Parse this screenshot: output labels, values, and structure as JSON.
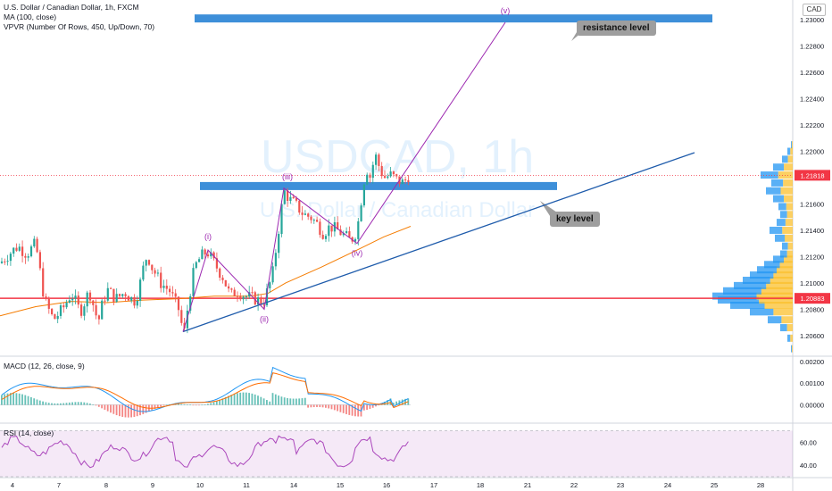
{
  "header": {
    "symbol_line": "U.S. Dollar / Canadian Dollar, 1h, FXCM",
    "ma_line": "MA (100, close)",
    "vpvr_line": "VPVR (Number Of Rows, 450, Up/Down, 70)",
    "currency_badge": "CAD"
  },
  "watermark": {
    "symbol": "USDCAD, 1h",
    "description": "U.S. Dollar / Canadian Dollar"
  },
  "annotations": {
    "resistance": "resistance level",
    "key": "key level"
  },
  "wave_labels": [
    "(i)",
    "(ii)",
    "(iii)",
    "(iv)",
    "(v)"
  ],
  "price_badges": {
    "last": "1.21818",
    "line": "1.20883"
  },
  "macd_title": "MACD (12, 26, close, 9)",
  "rsi_title": "RSI (14, close)",
  "colors": {
    "up": "#26a69a",
    "down": "#ef5350",
    "zone": "#3d8fd9",
    "wave": "#9c27b0",
    "trend": "#1e5bab",
    "ma": "#f57c00",
    "hline": "#f23645"
  },
  "chart_data": {
    "type": "candlestick",
    "x_tick_labels": [
      "4",
      "7",
      "8",
      "9",
      "10",
      "11",
      "14",
      "15",
      "16",
      "17",
      "18",
      "21",
      "22",
      "23",
      "24",
      "25",
      "28"
    ],
    "price_axis": {
      "ylim": [
        1.2045,
        1.2315
      ],
      "ticks": [
        "1.23000",
        "1.22800",
        "1.22600",
        "1.22400",
        "1.22200",
        "1.22000",
        "1.21800",
        "1.21600",
        "1.21400",
        "1.21200",
        "1.21000",
        "1.20800",
        "1.20600"
      ]
    },
    "close_path": [
      [
        0,
        1.2115
      ],
      [
        10,
        1.2122
      ],
      [
        20,
        1.2128
      ],
      [
        30,
        1.2122
      ],
      [
        40,
        1.213
      ],
      [
        45,
        1.2108
      ],
      [
        50,
        1.2086
      ],
      [
        60,
        1.2072
      ],
      [
        70,
        1.208
      ],
      [
        80,
        1.2092
      ],
      [
        90,
        1.2078
      ],
      [
        100,
        1.2094
      ],
      [
        110,
        1.207
      ],
      [
        115,
        1.2085
      ],
      [
        120,
        1.2095
      ],
      [
        130,
        1.2088
      ],
      [
        140,
        1.2093
      ],
      [
        150,
        1.2086
      ],
      [
        155,
        1.2093
      ],
      [
        160,
        1.211
      ],
      [
        165,
        1.2122
      ],
      [
        170,
        1.2112
      ],
      [
        180,
        1.21
      ],
      [
        190,
        1.2094
      ],
      [
        200,
        1.208
      ],
      [
        206,
        1.206
      ],
      [
        212,
        1.209
      ],
      [
        218,
        1.2112
      ],
      [
        225,
        1.212
      ],
      [
        232,
        1.2124
      ],
      [
        240,
        1.2115
      ],
      [
        250,
        1.2104
      ],
      [
        258,
        1.209
      ],
      [
        265,
        1.2094
      ],
      [
        275,
        1.209
      ],
      [
        285,
        1.2088
      ],
      [
        295,
        1.2085
      ],
      [
        305,
        1.2105
      ],
      [
        312,
        1.214
      ],
      [
        318,
        1.217
      ],
      [
        325,
        1.2163
      ],
      [
        333,
        1.2158
      ],
      [
        340,
        1.2152
      ],
      [
        348,
        1.215
      ],
      [
        355,
        1.2145
      ],
      [
        362,
        1.2138
      ],
      [
        370,
        1.2143
      ],
      [
        378,
        1.214
      ],
      [
        386,
        1.2136
      ],
      [
        393,
        1.2132
      ],
      [
        400,
        1.214
      ],
      [
        405,
        1.2165
      ],
      [
        410,
        1.2188
      ],
      [
        415,
        1.218
      ],
      [
        420,
        1.2198
      ],
      [
        425,
        1.2188
      ],
      [
        430,
        1.218
      ],
      [
        438,
        1.2182
      ],
      [
        445,
        1.2178
      ],
      [
        452,
        1.2176
      ],
      [
        458,
        1.2182
      ]
    ],
    "ma_100": [
      [
        0,
        1.2075
      ],
      [
        40,
        1.2082
      ],
      [
        80,
        1.2086
      ],
      [
        120,
        1.2085
      ],
      [
        160,
        1.2087
      ],
      [
        200,
        1.2088
      ],
      [
        240,
        1.209
      ],
      [
        280,
        1.209
      ],
      [
        300,
        1.2092
      ],
      [
        320,
        1.21
      ],
      [
        360,
        1.2112
      ],
      [
        400,
        1.2125
      ],
      [
        430,
        1.2135
      ],
      [
        460,
        1.2143
      ]
    ],
    "resistance_zone": [
      1.2296,
      1.2302
    ],
    "key_zone": [
      1.217,
      1.2176
    ],
    "horizontal_line": 1.20883,
    "trendline": [
      [
        205,
        1.2063
      ],
      [
        778,
        1.2199
      ]
    ],
    "elliott_wave": [
      {
        "label": "(i)",
        "x": 233,
        "y": 1.2125
      },
      {
        "label": "(ii)",
        "x": 296,
        "y": 1.208
      },
      {
        "label": "(iii)",
        "x": 318,
        "y": 1.2172
      },
      {
        "label": "(iv)",
        "x": 400,
        "y": 1.213
      },
      {
        "label": "(v)",
        "x": 566,
        "y": 1.2298
      }
    ],
    "macd": {
      "title": "MACD (12, 26, close, 9)",
      "ticks": [
        "0.00200",
        "0.00100",
        "0.00000"
      ],
      "ylim": [
        -0.0008,
        0.0022
      ]
    },
    "rsi": {
      "title": "RSI (14, close)",
      "ticks": [
        "60.00",
        "40.00"
      ],
      "ylim": [
        30,
        75
      ]
    }
  }
}
